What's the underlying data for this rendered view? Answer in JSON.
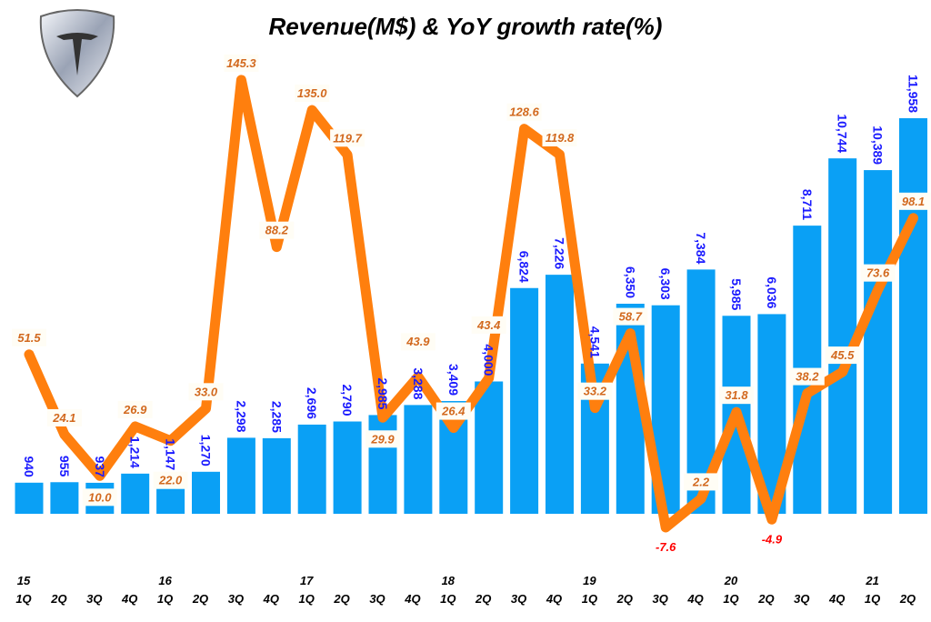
{
  "chart_data": {
    "type": "bar+line",
    "title": "Revenue(M$) & YoY growth rate(%)",
    "logo_text": "TESLA",
    "year_labels": [
      "15",
      "",
      "",
      "",
      "16",
      "",
      "",
      "",
      "17",
      "",
      "",
      "",
      "18",
      "",
      "",
      "",
      "19",
      "",
      "",
      "",
      "20",
      "",
      "",
      "",
      "21",
      ""
    ],
    "categories": [
      "1Q",
      "2Q",
      "3Q",
      "4Q",
      "1Q",
      "2Q",
      "3Q",
      "4Q",
      "1Q",
      "2Q",
      "3Q",
      "4Q",
      "1Q",
      "2Q",
      "3Q",
      "4Q",
      "1Q",
      "2Q",
      "3Q",
      "4Q",
      "1Q",
      "2Q",
      "3Q",
      "4Q",
      "1Q",
      "2Q"
    ],
    "series": [
      {
        "type": "bar",
        "values": [
          940,
          955,
          937,
          1214,
          1147,
          1270,
          2298,
          2285,
          2696,
          2790,
          2985,
          3288,
          3409,
          4000,
          6824,
          7226,
          4541,
          6350,
          6303,
          7384,
          5985,
          6036,
          8711,
          10744,
          10389,
          11958
        ],
        "labels": [
          "940",
          "955",
          "937",
          "1,214",
          "1,147",
          "1,270",
          "2,298",
          "2,285",
          "2,696",
          "2,790",
          "2,985",
          "3,288",
          "3,409",
          "4,000",
          "6,824",
          "7,226",
          "4,541",
          "6,350",
          "6,303",
          "7,384",
          "5,985",
          "6,036",
          "8,711",
          "10,744",
          "10,389",
          "11,958"
        ]
      },
      {
        "type": "line",
        "values": [
          51.5,
          24.1,
          10.0,
          26.9,
          22.0,
          33.0,
          145.3,
          88.2,
          135.0,
          119.7,
          29.9,
          43.9,
          26.4,
          43.4,
          128.6,
          119.8,
          33.2,
          58.7,
          -7.6,
          2.2,
          31.8,
          -4.9,
          38.2,
          45.5,
          73.6,
          98.1
        ]
      }
    ],
    "colors": {
      "bar": "#0aa0f5",
      "bar_label": "#1a1aff",
      "line": "#ff7f0e",
      "line_label": "#d2691e",
      "negative_label": "#ff0000"
    }
  }
}
